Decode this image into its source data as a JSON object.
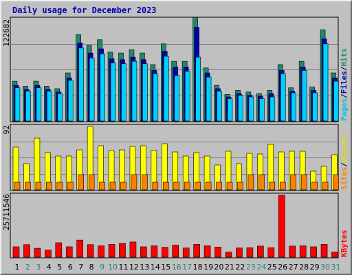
{
  "chart_data": {
    "type": "bar",
    "title": "Daily usage for December 2023",
    "categories": [
      "1",
      "2",
      "3",
      "4",
      "5",
      "6",
      "7",
      "8",
      "9",
      "10",
      "11",
      "12",
      "13",
      "14",
      "15",
      "16",
      "17",
      "18",
      "19",
      "20",
      "21",
      "22",
      "23",
      "24",
      "25",
      "26",
      "27",
      "28",
      "29",
      "30",
      "31"
    ],
    "weekend_days": [
      "2",
      "3",
      "9",
      "10",
      "16",
      "17",
      "23",
      "24",
      "30",
      "31"
    ],
    "panels": [
      {
        "id": "top",
        "max_label": "122682",
        "ylim": [
          0,
          122682
        ],
        "series": [
          {
            "name": "Hits",
            "color": "#208868",
            "values": [
              48000,
              42000,
              48000,
              42000,
              39000,
              58000,
              104000,
              91000,
              98000,
              83000,
              82000,
              86000,
              82000,
              68000,
              93000,
              72000,
              72000,
              125000,
              64000,
              43000,
              32000,
              37000,
              35000,
              33000,
              37000,
              68000,
              40000,
              72000,
              41000,
              110000,
              58000
            ]
          },
          {
            "name": "Files",
            "color": "#0000b0",
            "values": [
              43000,
              38000,
              43000,
              38000,
              35000,
              52000,
              94000,
              82000,
              87000,
              75000,
              74000,
              77000,
              74000,
              61000,
              84000,
              65000,
              65000,
              113000,
              58000,
              39000,
              29000,
              33000,
              31000,
              30000,
              33000,
              61000,
              36000,
              65000,
              37000,
              99000,
              52000
            ]
          },
          {
            "name": "Pages",
            "color": "#00d0ff",
            "values": [
              40000,
              36000,
              40000,
              36000,
              33000,
              49000,
              88000,
              76000,
              81000,
              70000,
              69000,
              72000,
              69000,
              57000,
              78000,
              55000,
              60000,
              77000,
              53000,
              36000,
              27000,
              31000,
              29000,
              27000,
              29000,
              57000,
              34000,
              61000,
              34000,
              93000,
              48000
            ]
          }
        ]
      },
      {
        "id": "mid",
        "max_label": "92",
        "ylim": [
          0,
          92
        ],
        "series": [
          {
            "name": "Visits",
            "color": "#ffff00",
            "values": [
              62,
              38,
              75,
              54,
              49,
              49,
              58,
              92,
              64,
              57,
              58,
              63,
              64,
              57,
              67,
              55,
              49,
              54,
              49,
              36,
              56,
              38,
              53,
              52,
              66,
              55,
              56,
              56,
              27,
              34,
              51
            ]
          },
          {
            "name": "Sites",
            "color": "#ff8000",
            "values": [
              11,
              11,
              11,
              11,
              11,
              11,
              22,
              22,
              11,
              11,
              11,
              22,
              22,
              11,
              11,
              11,
              11,
              11,
              11,
              11,
              11,
              11,
              22,
              22,
              11,
              11,
              22,
              22,
              11,
              11,
              22
            ]
          }
        ]
      },
      {
        "id": "bottom",
        "max_label": "25711546",
        "ylim": [
          0,
          25711546
        ],
        "series": [
          {
            "name": "KBytes",
            "color": "#ff0000",
            "values": [
              4300000,
              5200000,
              3700000,
              2900000,
              6000000,
              4300000,
              7100000,
              5200000,
              4700000,
              5300000,
              5700000,
              6300000,
              4300000,
              4700000,
              4100000,
              5000000,
              3800000,
              5300000,
              4700000,
              4200000,
              2100000,
              3800000,
              3900000,
              4600000,
              3900000,
              25711546,
              4600000,
              4700000,
              4300000,
              5300000,
              2100000
            ]
          }
        ]
      }
    ],
    "right_labels": {
      "top": [
        {
          "text": "Pages",
          "color": "#00c0e0"
        },
        {
          "text": "/",
          "color": "#000000"
        },
        {
          "text": "Files",
          "color": "#0000b0"
        },
        {
          "text": "/",
          "color": "#000000"
        },
        {
          "text": "Hits",
          "color": "#208868"
        }
      ],
      "mid": [
        {
          "text": "Sites",
          "color": "#ff8000"
        },
        {
          "text": "/",
          "color": "#000000"
        },
        {
          "text": "Visits",
          "color": "#e0e000"
        }
      ],
      "bottom": [
        {
          "text": "KBytes",
          "color": "#ff0000"
        }
      ]
    }
  }
}
